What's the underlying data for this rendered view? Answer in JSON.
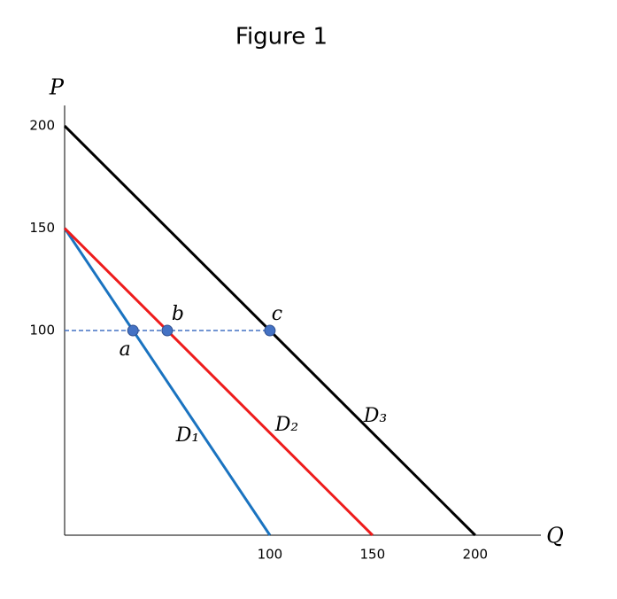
{
  "chart_data": {
    "type": "line",
    "title": "Figure 1",
    "x_label": "Q",
    "y_label": "P",
    "xlim": [
      0,
      232
    ],
    "ylim": [
      0,
      210
    ],
    "xticks": [
      100,
      150,
      200
    ],
    "yticks": [
      100,
      150,
      200
    ],
    "series": [
      {
        "name": "D₁",
        "color": "#1a73c0",
        "x": [
          0,
          100
        ],
        "values": [
          150,
          0
        ]
      },
      {
        "name": "D₂",
        "color": "#ee1c1c",
        "x": [
          0,
          150
        ],
        "values": [
          150,
          0
        ]
      },
      {
        "name": "D₃",
        "color": "#000000",
        "x": [
          0,
          200
        ],
        "values": [
          200,
          0
        ]
      }
    ],
    "hline": {
      "y": 100,
      "xmax": 100,
      "color": "#4472c4"
    },
    "points": [
      {
        "label": "a",
        "x": 33.3,
        "y": 100
      },
      {
        "label": "b",
        "x": 50,
        "y": 100
      },
      {
        "label": "c",
        "x": 100,
        "y": 100
      }
    ],
    "point_color": "#4472c4"
  }
}
